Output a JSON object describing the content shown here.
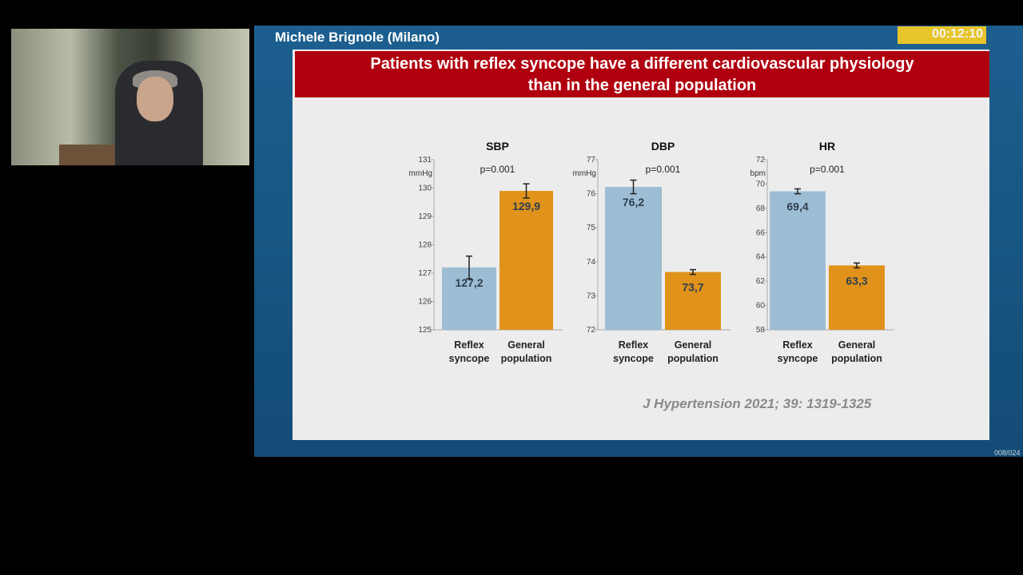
{
  "header": {
    "speaker": "Michele Brignole (Milano)",
    "timer": "00:12:10",
    "page_counter": "008/024"
  },
  "slide": {
    "title_line1": "Patients with reflex syncope have a different cardiovascular physiology",
    "title_line2": "than in the general population",
    "citation": "J Hypertension 2021; 39: 1319-1325"
  },
  "colors": {
    "reflex": "#9dbdd4",
    "general": "#e0921a",
    "banner": "#b0000f",
    "frame": "#1c5f8f",
    "timer": "#e6c42a"
  },
  "chart_data": [
    {
      "type": "bar",
      "title": "SBP",
      "unit": "mmHg",
      "annotation": "p=0.001",
      "categories": [
        "Reflex syncope",
        "General population"
      ],
      "values": [
        127.2,
        129.9
      ],
      "value_labels": [
        "127,2",
        "129,9"
      ],
      "errors": [
        0.4,
        0.25
      ],
      "ylim": [
        125,
        131
      ],
      "yticks": [
        125,
        126,
        127,
        128,
        129,
        130,
        131
      ]
    },
    {
      "type": "bar",
      "title": "DBP",
      "unit": "mmHg",
      "annotation": "p=0.001",
      "categories": [
        "Reflex syncope",
        "General population"
      ],
      "values": [
        76.2,
        73.7
      ],
      "value_labels": [
        "76,2",
        "73,7"
      ],
      "errors": [
        0.2,
        0.07
      ],
      "ylim": [
        72,
        77
      ],
      "yticks": [
        72,
        73,
        74,
        75,
        76,
        77
      ]
    },
    {
      "type": "bar",
      "title": "HR",
      "unit": "bpm",
      "annotation": "p=0.001",
      "categories": [
        "Reflex syncope",
        "General population"
      ],
      "values": [
        69.4,
        63.3
      ],
      "value_labels": [
        "69,4",
        "63,3"
      ],
      "errors": [
        0.2,
        0.2
      ],
      "ylim": [
        58,
        72
      ],
      "yticks": [
        58,
        60,
        62,
        64,
        66,
        68,
        70,
        72
      ]
    }
  ]
}
